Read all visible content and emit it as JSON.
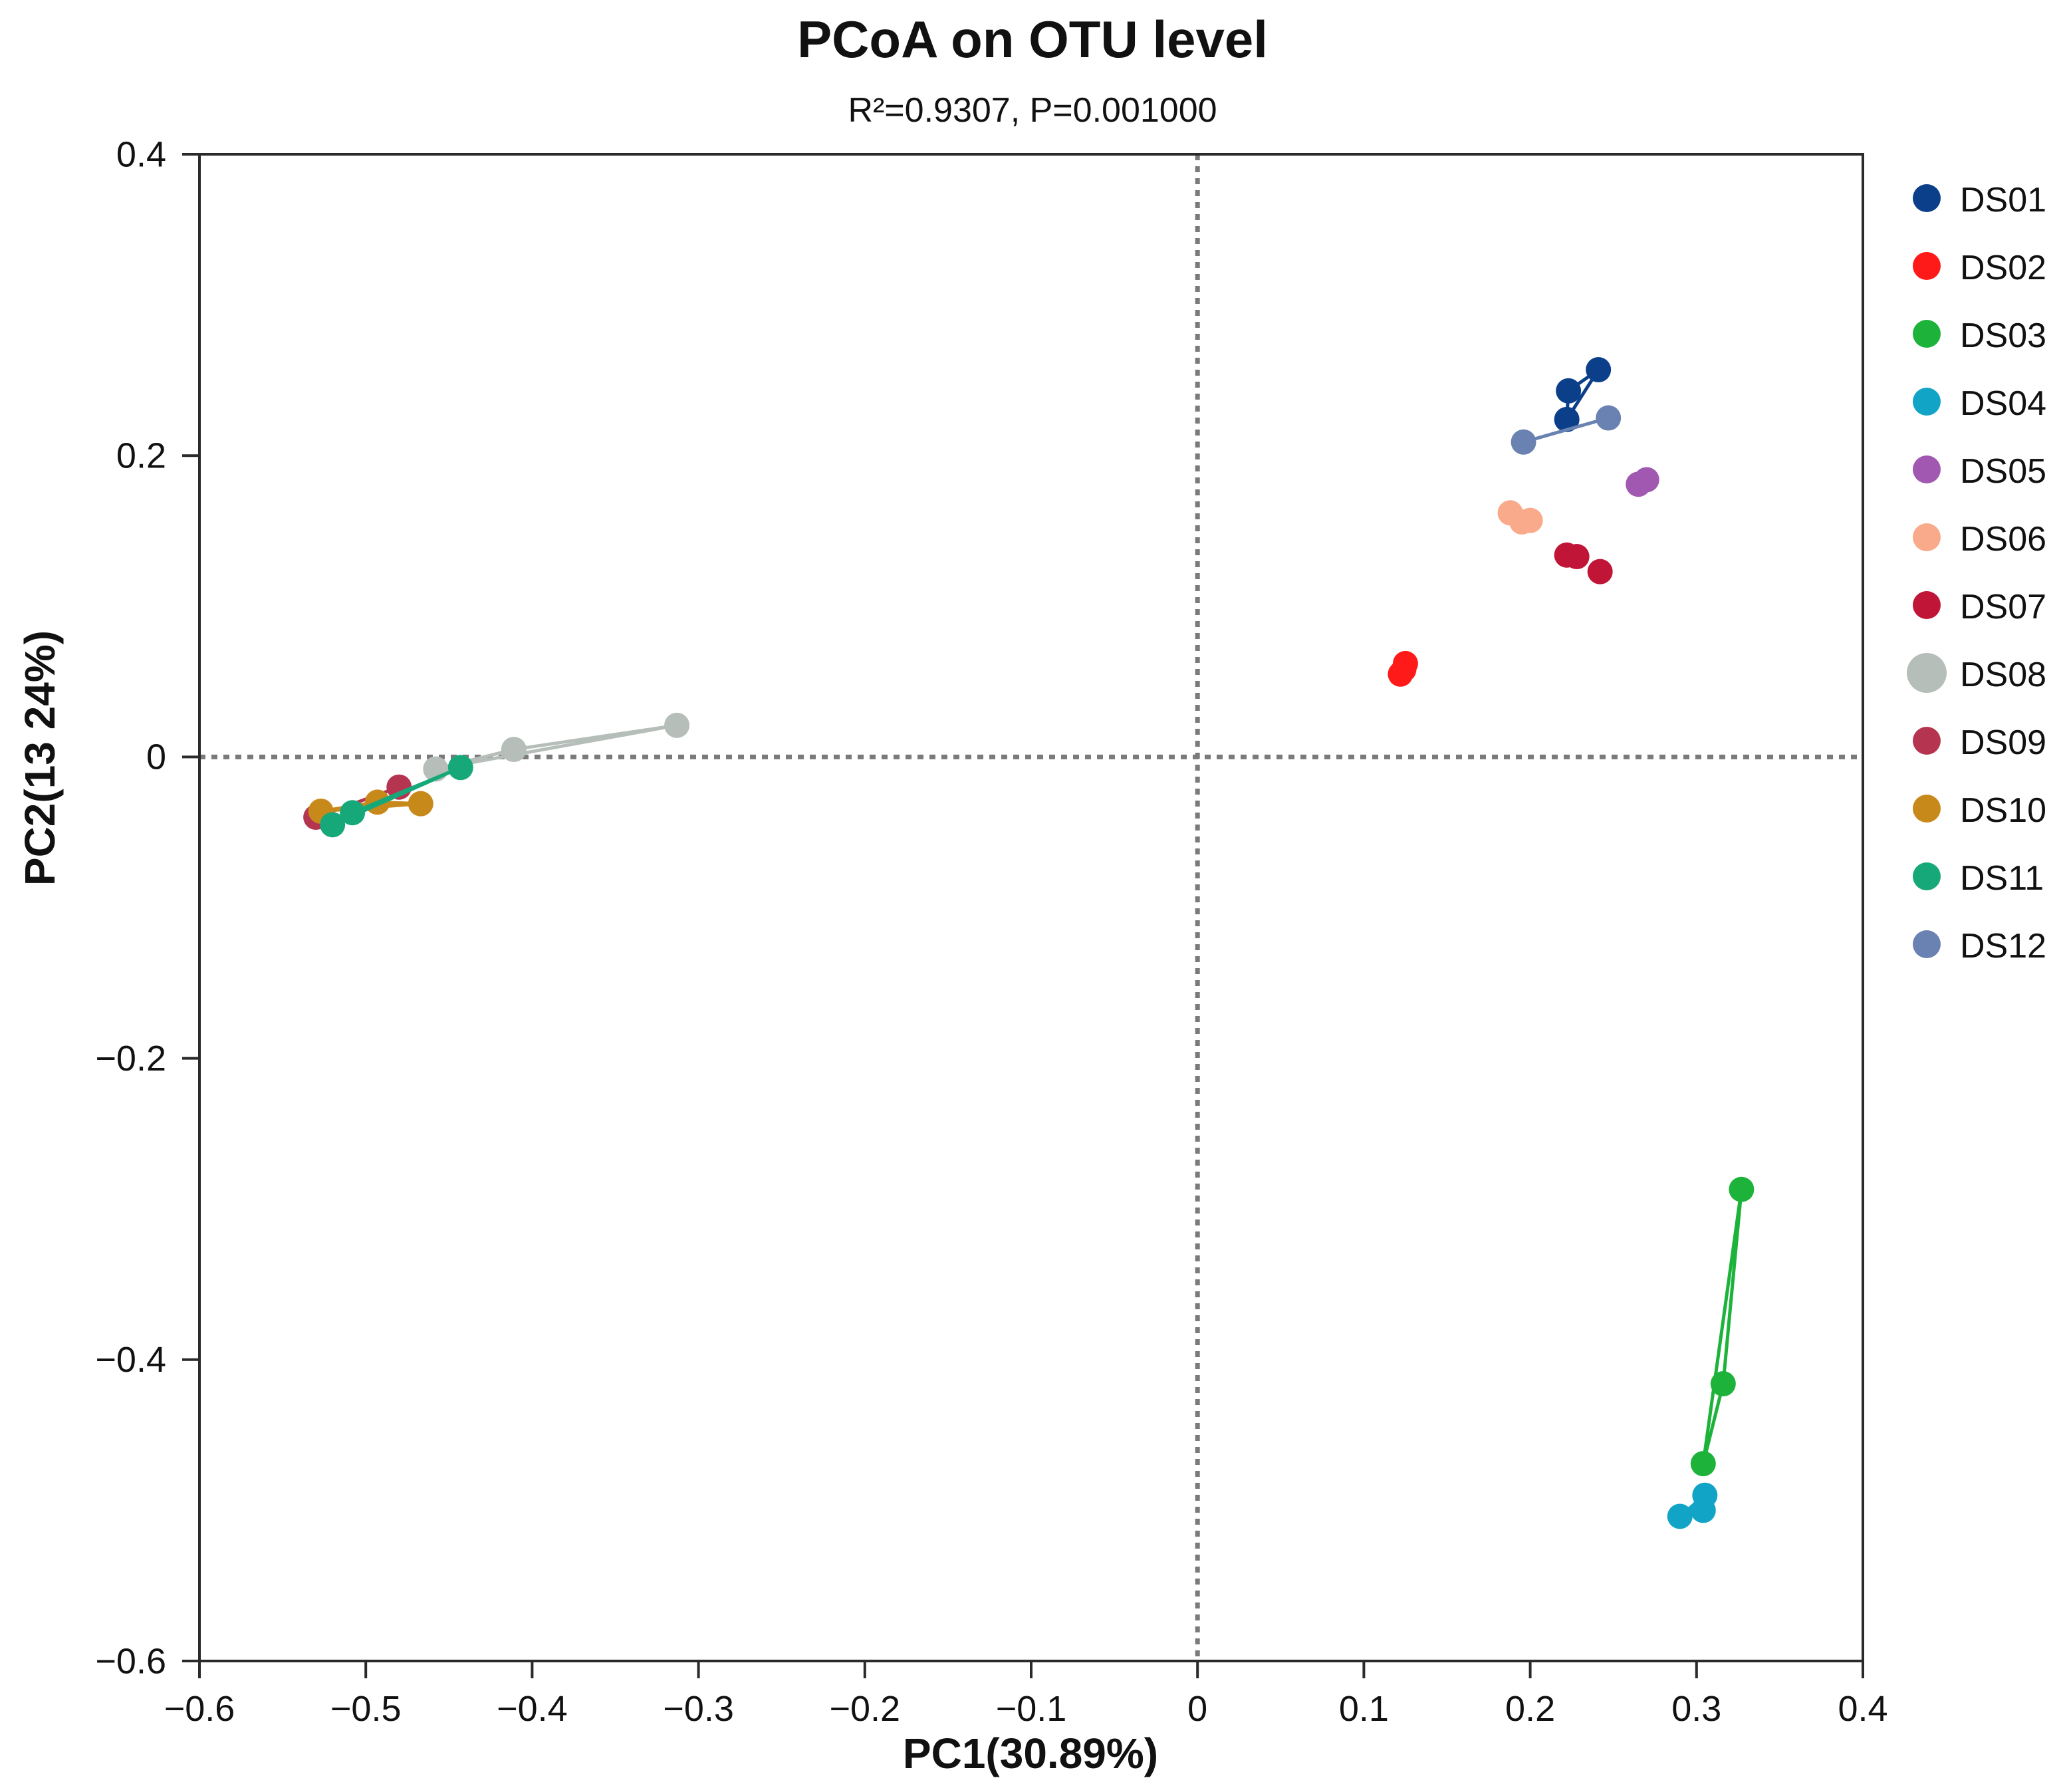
{
  "chart_data": {
    "type": "scatter",
    "title": "PCoA on OTU level",
    "subtitle": "R²=0.9307, P=0.001000",
    "xlabel": "PC1(30.89%)",
    "ylabel": "PC2(13 24%)",
    "xlim": [
      -0.6,
      0.4
    ],
    "ylim": [
      -0.6,
      0.4
    ],
    "x_ticks": [
      -0.6,
      -0.5,
      -0.4,
      -0.3,
      -0.2,
      -0.1,
      0,
      0.1,
      0.2,
      0.3,
      0.4
    ],
    "x_tick_labels": [
      "−0.6",
      "−0.5",
      "−0.4",
      "−0.3",
      "−0.2",
      "−0.1",
      "0",
      "0.1",
      "0.2",
      "0.3",
      "0.4"
    ],
    "y_ticks": [
      -0.6,
      -0.4,
      -0.2,
      0,
      0.2,
      0.4
    ],
    "y_tick_labels": [
      "−0.6",
      "−0.4",
      "−0.2",
      "0",
      "0.2",
      "0.4"
    ],
    "reference_lines": {
      "x": 0,
      "y": 0,
      "style": "dotted"
    },
    "legend_position": "right",
    "series": [
      {
        "name": "DS01",
        "color": "#0B3F8A",
        "points": [
          [
            0.222,
            0.224
          ],
          [
            0.223,
            0.243
          ],
          [
            0.241,
            0.257
          ]
        ],
        "connect": true
      },
      {
        "name": "DS02",
        "color": "#FF1A1A",
        "points": [
          [
            0.122,
            0.055
          ],
          [
            0.125,
            0.062
          ],
          [
            0.124,
            0.058
          ]
        ],
        "connect": false
      },
      {
        "name": "DS03",
        "color": "#1DB33B",
        "points": [
          [
            0.327,
            -0.287
          ],
          [
            0.316,
            -0.416
          ],
          [
            0.304,
            -0.469
          ]
        ],
        "connect": true
      },
      {
        "name": "DS04",
        "color": "#11A4C6",
        "points": [
          [
            0.29,
            -0.504
          ],
          [
            0.305,
            -0.49
          ],
          [
            0.304,
            -0.5
          ]
        ],
        "connect": true
      },
      {
        "name": "DS05",
        "color": "#A058B0",
        "points": [
          [
            0.265,
            0.181
          ],
          [
            0.27,
            0.184
          ]
        ],
        "connect": false
      },
      {
        "name": "DS06",
        "color": "#F9AA8A",
        "points": [
          [
            0.188,
            0.162
          ],
          [
            0.195,
            0.156
          ],
          [
            0.2,
            0.157
          ]
        ],
        "connect": false
      },
      {
        "name": "DS07",
        "color": "#C01536",
        "points": [
          [
            0.222,
            0.134
          ],
          [
            0.228,
            0.133
          ],
          [
            0.242,
            0.123
          ]
        ],
        "connect": false
      },
      {
        "name": "DS08",
        "color": "#B5BEB8",
        "points": [
          [
            -0.313,
            0.021
          ],
          [
            -0.411,
            0.005
          ],
          [
            -0.458,
            -0.008
          ]
        ],
        "connect": true
      },
      {
        "name": "DS09",
        "color": "#B53551",
        "points": [
          [
            -0.48,
            -0.02
          ],
          [
            -0.53,
            -0.04
          ]
        ],
        "connect": true
      },
      {
        "name": "DS10",
        "color": "#C8891B",
        "points": [
          [
            -0.467,
            -0.031
          ],
          [
            -0.493,
            -0.03
          ],
          [
            -0.527,
            -0.036
          ]
        ],
        "connect": true
      },
      {
        "name": "DS11",
        "color": "#17A87A",
        "points": [
          [
            -0.443,
            -0.007
          ],
          [
            -0.508,
            -0.037
          ],
          [
            -0.52,
            -0.045
          ]
        ],
        "connect": true
      },
      {
        "name": "DS12",
        "color": "#6A82B2",
        "points": [
          [
            0.196,
            0.209
          ],
          [
            0.247,
            0.225
          ]
        ],
        "connect": true
      }
    ]
  }
}
